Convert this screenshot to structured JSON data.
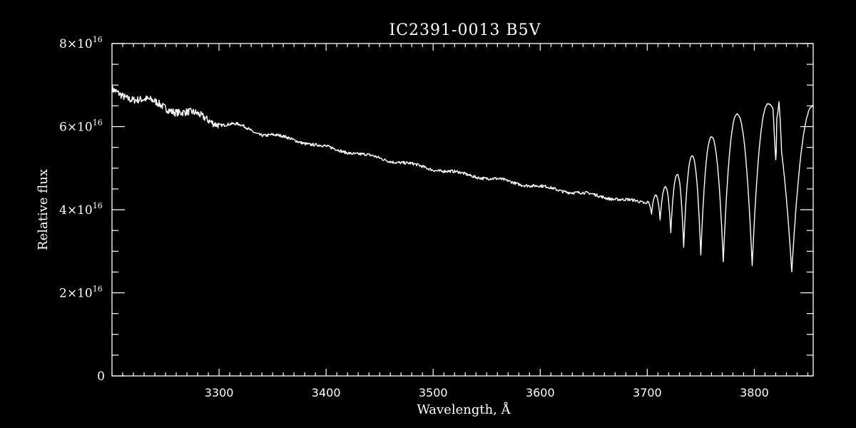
{
  "chart_data": {
    "type": "line",
    "title": "IC2391-0013   B5V",
    "xlabel": "Wavelength, Å",
    "ylabel": "Relative flux",
    "xlim": [
      3200,
      3855
    ],
    "ylim": [
      0,
      8e+16
    ],
    "grid": false,
    "legend": "none",
    "colors": {
      "background": "#000000",
      "foreground": "#ffffff"
    },
    "x_ticks": [
      {
        "value": 3300,
        "label": "3300"
      },
      {
        "value": 3400,
        "label": "3400"
      },
      {
        "value": 3500,
        "label": "3500"
      },
      {
        "value": 3600,
        "label": "3600"
      },
      {
        "value": 3700,
        "label": "3700"
      },
      {
        "value": 3800,
        "label": "3800"
      }
    ],
    "x_minor_step": 10,
    "y_ticks": [
      {
        "value": 0,
        "mantissa": "0",
        "exponent": ""
      },
      {
        "value": 2e+16,
        "mantissa": "2×10",
        "exponent": "16"
      },
      {
        "value": 4e+16,
        "mantissa": "4×10",
        "exponent": "16"
      },
      {
        "value": 6e+16,
        "mantissa": "6×10",
        "exponent": "16"
      },
      {
        "value": 8e+16,
        "mantissa": "8×10",
        "exponent": "16"
      }
    ],
    "y_minor_step": 5000000000000000.0,
    "series": [
      {
        "continuum": [
          [
            3200,
            6.85e+16
          ],
          [
            3300,
            6.1e+16
          ],
          [
            3400,
            5.5e+16
          ],
          [
            3500,
            4.98e+16
          ],
          [
            3600,
            4.55e+16
          ],
          [
            3700,
            4.15e+16
          ],
          [
            3855,
            6.6e+16
          ]
        ],
        "balmer_lines": [
          {
            "x": 3704,
            "min": 3.9e+16
          },
          {
            "x": 3712,
            "min": 3.75e+16
          },
          {
            "x": 3722,
            "min": 3.45e+16
          },
          {
            "x": 3734,
            "min": 3.1e+16
          },
          {
            "x": 3750,
            "min": 2.9e+16
          },
          {
            "x": 3771,
            "min": 2.75e+16
          },
          {
            "x": 3798,
            "min": 2.65e+16
          },
          {
            "x": 3835,
            "min": 2.5e+16
          }
        ],
        "peaks": [
          {
            "x": 3700,
            "max": 4.2e+16
          },
          {
            "x": 3708,
            "max": 4.35e+16
          },
          {
            "x": 3717,
            "max": 4.55e+16
          },
          {
            "x": 3728,
            "max": 4.85e+16
          },
          {
            "x": 3742,
            "max": 5.3e+16
          },
          {
            "x": 3760,
            "max": 5.75e+16
          },
          {
            "x": 3784,
            "max": 6.3e+16
          },
          {
            "x": 3813,
            "max": 6.55e+16
          },
          {
            "x": 3855,
            "max": 6.5e+16
          }
        ],
        "narrow_features": [
          {
            "x": 3820,
            "min": 5.2e+16
          },
          {
            "x": 3823,
            "max": 6.6e+16
          }
        ]
      }
    ]
  }
}
